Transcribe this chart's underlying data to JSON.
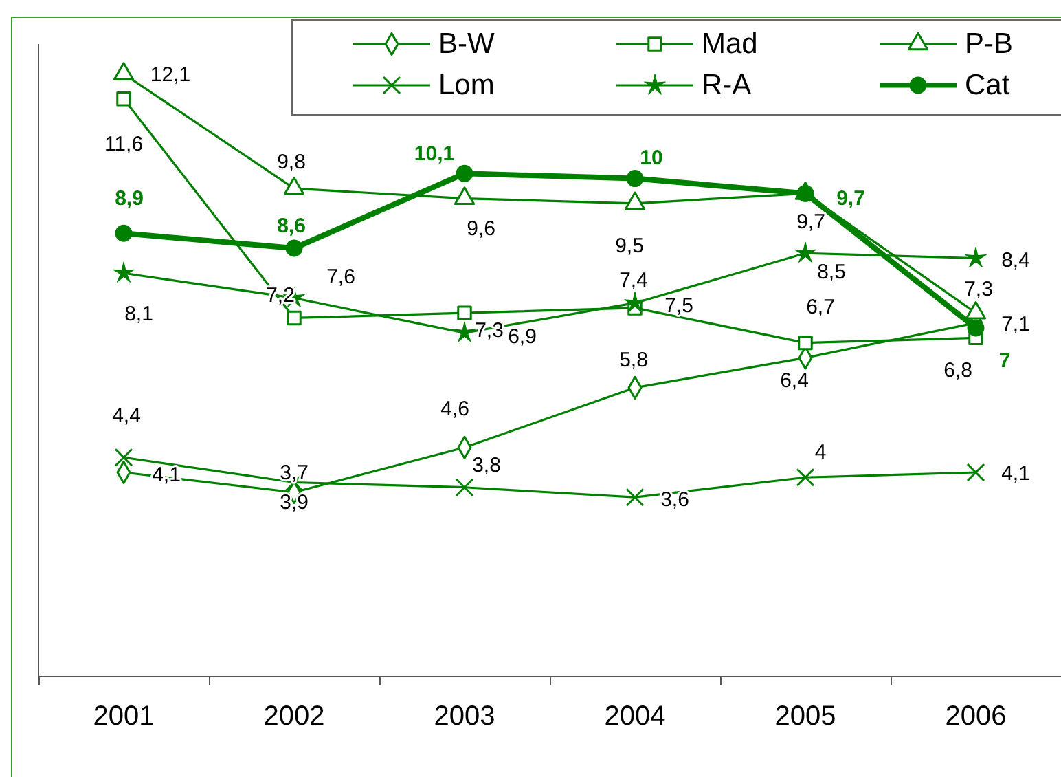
{
  "chart_data": {
    "type": "line",
    "categories": [
      "2001",
      "2002",
      "2003",
      "2004",
      "2005",
      "2006"
    ],
    "series": [
      {
        "name": "B-W",
        "color": "#008000",
        "marker": "diamond",
        "values": [
          4.1,
          3.7,
          4.6,
          5.8,
          6.4,
          7.1
        ],
        "value_labels": [
          "4,1",
          "3,7",
          "4,6",
          "5,8",
          "6,4",
          "7,1"
        ]
      },
      {
        "name": "Mad",
        "color": "#008000",
        "marker": "square",
        "values": [
          11.6,
          7.2,
          7.3,
          7.4,
          6.7,
          6.8
        ],
        "value_labels": [
          "11,6",
          "7,2",
          "7,3",
          "7,4",
          "6,7",
          "6,8"
        ]
      },
      {
        "name": "P-B",
        "color": "#008000",
        "marker": "triangle",
        "values": [
          12.1,
          9.8,
          9.6,
          9.5,
          9.7,
          7.3
        ],
        "value_labels": [
          "12,1",
          "9,8",
          "9,6",
          "9,5",
          "9,7",
          "7,3"
        ]
      },
      {
        "name": "Lom",
        "color": "#008000",
        "marker": "cross",
        "values": [
          4.4,
          3.9,
          3.8,
          3.6,
          4,
          4.1
        ],
        "value_labels": [
          "4,4",
          "3,9",
          "3,8",
          "3,6",
          "4",
          "4,1"
        ]
      },
      {
        "name": "R-A",
        "color": "#008000",
        "marker": "star",
        "values": [
          8.1,
          7.6,
          6.9,
          7.5,
          8.5,
          8.4
        ],
        "value_labels": [
          "8,1",
          "7,6",
          "6,9",
          "7,5",
          "8,5",
          "8,4"
        ]
      },
      {
        "name": "Cat",
        "color": "#008000",
        "marker": "circle",
        "values": [
          8.9,
          8.6,
          10.1,
          10,
          9.7,
          7
        ],
        "value_labels": [
          "8,9",
          "8,6",
          "10,1",
          "10",
          "9,7",
          "7"
        ]
      }
    ],
    "ylim": [
      0,
      12.7
    ],
    "tick_labels": "x",
    "legend": "top right"
  }
}
